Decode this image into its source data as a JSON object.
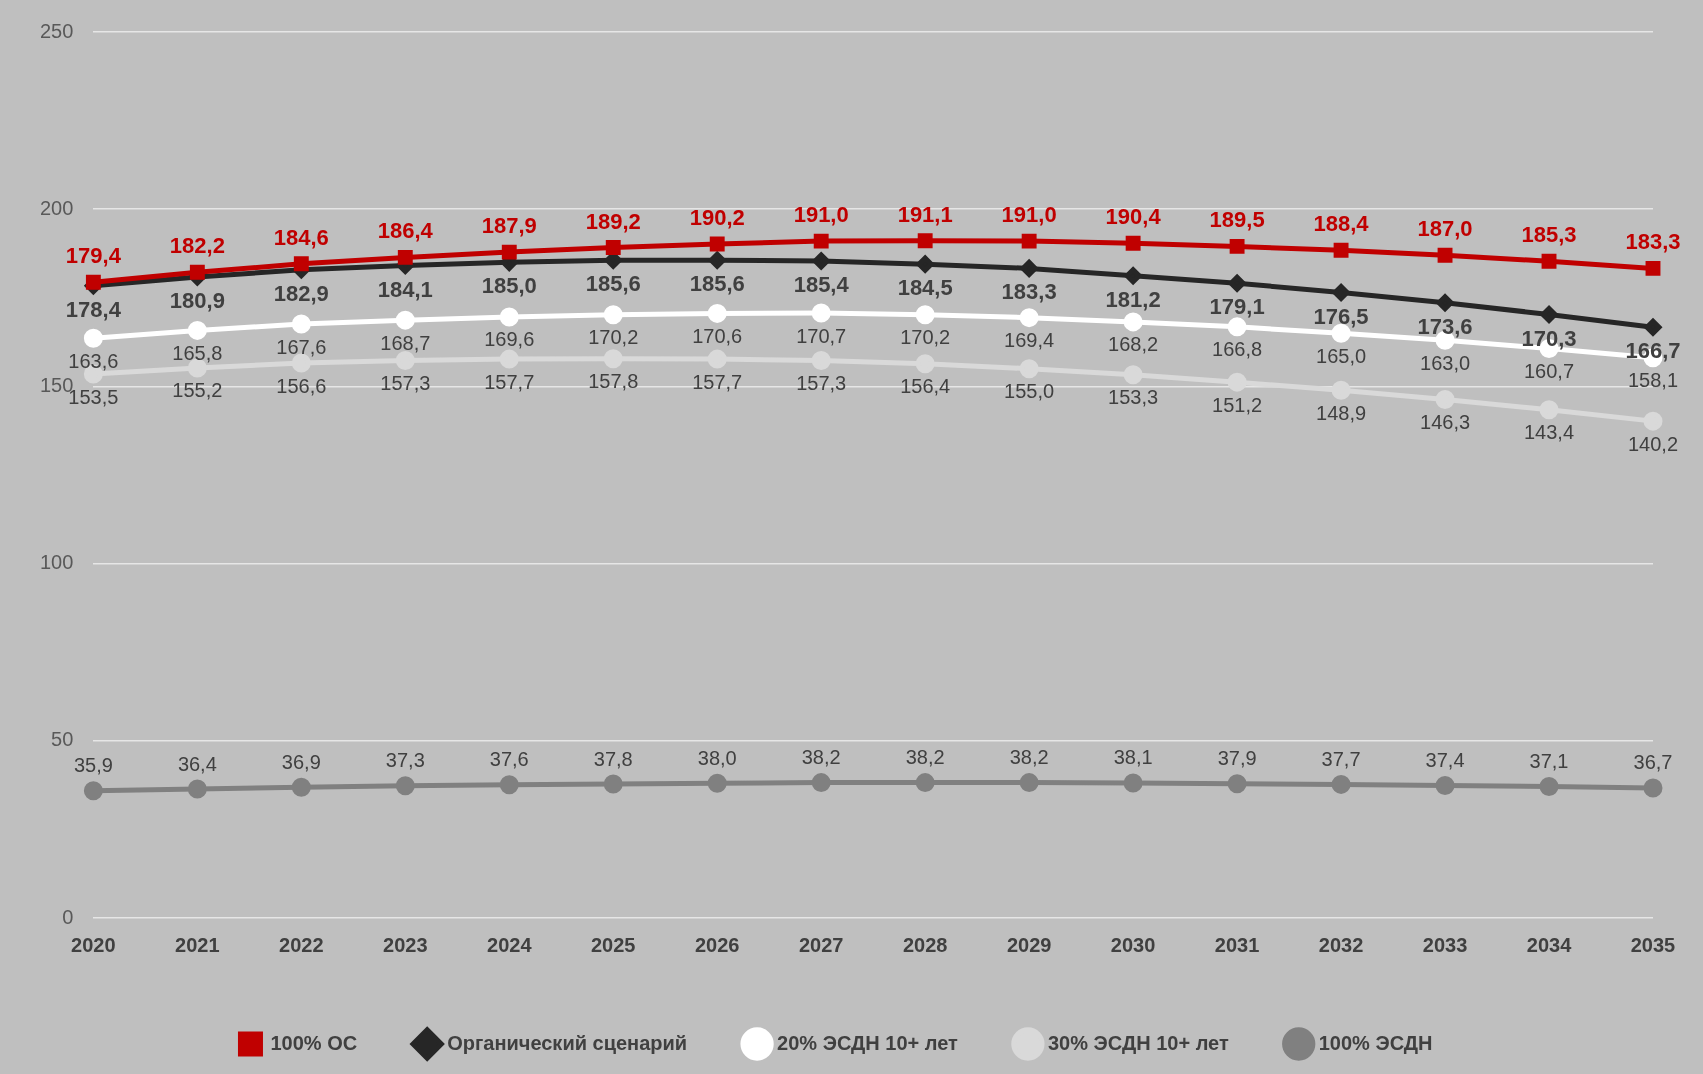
{
  "chart_data": {
    "type": "line",
    "categories": [
      "2020",
      "2021",
      "2022",
      "2023",
      "2024",
      "2025",
      "2026",
      "2027",
      "2028",
      "2029",
      "2030",
      "2031",
      "2032",
      "2033",
      "2034",
      "2035"
    ],
    "ylim": [
      0,
      250
    ],
    "yticks": [
      0,
      50,
      100,
      150,
      200,
      250
    ],
    "grid": "y",
    "legend": "bottom",
    "series": [
      {
        "name": "100% ОС",
        "color": "#c00000",
        "marker": "square",
        "values": [
          179.4,
          182.2,
          184.6,
          186.4,
          187.9,
          189.2,
          190.2,
          191.0,
          191.1,
          191.0,
          190.4,
          189.5,
          188.4,
          187.0,
          185.3,
          183.3
        ],
        "value_labels": [
          "179,4",
          "182,2",
          "184,6",
          "186,4",
          "187,9",
          "189,2",
          "190,2",
          "191,0",
          "191,1",
          "191,0",
          "190,4",
          "189,5",
          "188,4",
          "187,0",
          "185,3",
          "183,3"
        ]
      },
      {
        "name": "Органический сценарий",
        "color": "#262626",
        "marker": "diamond",
        "values": [
          178.4,
          180.9,
          182.9,
          184.1,
          185.0,
          185.6,
          185.6,
          185.4,
          184.5,
          183.3,
          181.2,
          179.1,
          176.5,
          173.6,
          170.3,
          166.7
        ],
        "value_labels": [
          "178,4",
          "180,9",
          "182,9",
          "184,1",
          "185,0",
          "185,6",
          "185,6",
          "185,4",
          "184,5",
          "183,3",
          "181,2",
          "179,1",
          "176,5",
          "173,6",
          "170,3",
          "166,7"
        ]
      },
      {
        "name": "20% ЭСДН 10+ лет",
        "color": "#ffffff",
        "marker": "circle",
        "values": [
          163.6,
          165.8,
          167.6,
          168.7,
          169.6,
          170.2,
          170.6,
          170.7,
          170.2,
          169.4,
          168.2,
          166.8,
          165.0,
          163.0,
          160.7,
          158.1
        ],
        "value_labels": [
          "163,6",
          "165,8",
          "167,6",
          "168,7",
          "169,6",
          "170,2",
          "170,6",
          "170,7",
          "170,2",
          "169,4",
          "168,2",
          "166,8",
          "165,0",
          "163,0",
          "160,7",
          "158,1"
        ]
      },
      {
        "name": "30% ЭСДН 10+ лет",
        "color": "#d9d9d9",
        "marker": "circle",
        "values": [
          153.5,
          155.2,
          156.6,
          157.3,
          157.7,
          157.8,
          157.7,
          157.3,
          156.4,
          155.0,
          153.3,
          151.2,
          148.9,
          146.3,
          143.4,
          140.2
        ],
        "value_labels": [
          "153,5",
          "155,2",
          "156,6",
          "157,3",
          "157,7",
          "157,8",
          "157,7",
          "157,3",
          "156,4",
          "155,0",
          "153,3",
          "151,2",
          "148,9",
          "146,3",
          "143,4",
          "140,2"
        ]
      },
      {
        "name": "100% ЭСДН",
        "color": "#808080",
        "marker": "circle",
        "values": [
          35.9,
          36.4,
          36.9,
          37.3,
          37.6,
          37.8,
          38.0,
          38.2,
          38.2,
          38.2,
          38.1,
          37.9,
          37.7,
          37.4,
          37.1,
          36.7
        ],
        "value_labels": [
          "35,9",
          "36,4",
          "36,9",
          "37,3",
          "37,6",
          "37,8",
          "38,0",
          "38,2",
          "38,2",
          "38,2",
          "38,1",
          "37,9",
          "37,7",
          "37,4",
          "37,1",
          "36,7"
        ]
      }
    ]
  }
}
